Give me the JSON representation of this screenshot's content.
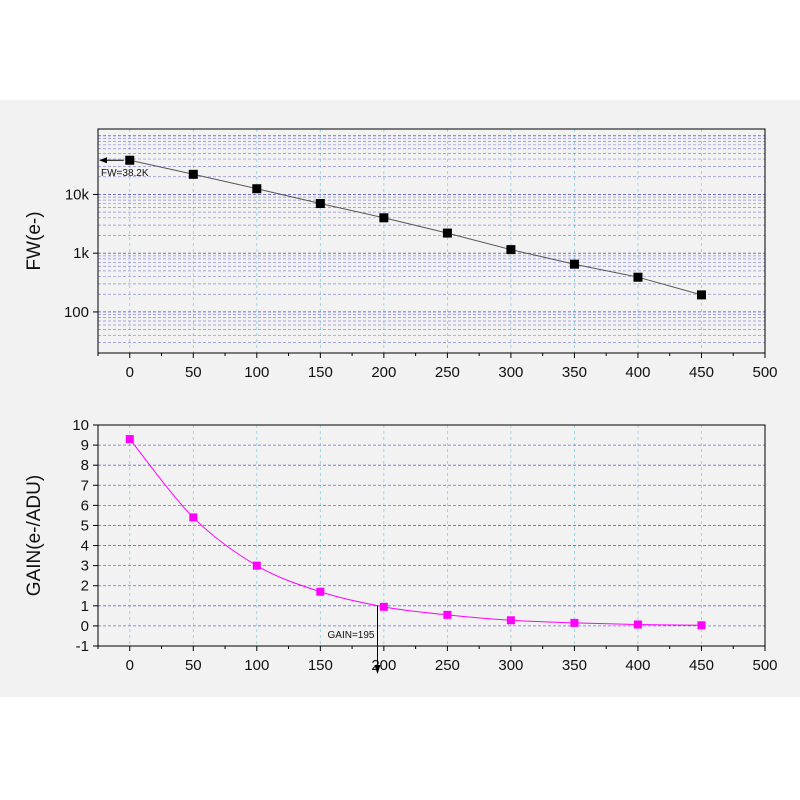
{
  "chart_data": [
    {
      "id": "fw",
      "type": "line",
      "ylabel": "FW(e-)",
      "xlabel": "",
      "title": "",
      "yscale": "log",
      "xlim": [
        -25,
        500
      ],
      "ylim": [
        20,
        130000
      ],
      "xticks": [
        0,
        50,
        100,
        150,
        200,
        250,
        300,
        350,
        400,
        450,
        500
      ],
      "yticks": [
        {
          "value": 100,
          "label": "100"
        },
        {
          "value": 1000,
          "label": "1k"
        },
        {
          "value": 10000,
          "label": "10k"
        }
      ],
      "grid": true,
      "series": [
        {
          "color": "#000000",
          "marker": "square",
          "x": [
            0,
            50,
            100,
            150,
            200,
            250,
            300,
            350,
            400,
            450
          ],
          "y": [
            38200,
            22000,
            12500,
            7000,
            4000,
            2200,
            1150,
            650,
            390,
            195
          ]
        }
      ],
      "annotations": [
        {
          "text": "FW=38.2K",
          "x": 0,
          "y": 38200,
          "arrow": "left"
        }
      ]
    },
    {
      "id": "gain",
      "type": "line",
      "ylabel": "GAIN(e-/ADU)",
      "xlabel": "",
      "title": "",
      "yscale": "linear",
      "xlim": [
        -25,
        500
      ],
      "ylim": [
        -1,
        10
      ],
      "xticks": [
        0,
        50,
        100,
        150,
        200,
        250,
        300,
        350,
        400,
        450,
        500
      ],
      "yticks": [
        {
          "value": -1,
          "label": "-1"
        },
        {
          "value": 0,
          "label": "0"
        },
        {
          "value": 1,
          "label": "1"
        },
        {
          "value": 2,
          "label": "2"
        },
        {
          "value": 3,
          "label": "3"
        },
        {
          "value": 4,
          "label": "4"
        },
        {
          "value": 5,
          "label": "5"
        },
        {
          "value": 6,
          "label": "6"
        },
        {
          "value": 7,
          "label": "7"
        },
        {
          "value": 8,
          "label": "8"
        },
        {
          "value": 9,
          "label": "9"
        },
        {
          "value": 10,
          "label": "10"
        }
      ],
      "grid": true,
      "series": [
        {
          "color": "#ff00ff",
          "marker": "square",
          "x": [
            0,
            50,
            100,
            150,
            200,
            250,
            300,
            350,
            400,
            450
          ],
          "y": [
            9.3,
            5.4,
            3.0,
            1.7,
            0.95,
            0.55,
            0.28,
            0.15,
            0.07,
            0.03
          ]
        }
      ],
      "annotations": [
        {
          "text": "GAIN=195",
          "x": 195,
          "y": 1,
          "arrow": "down"
        }
      ]
    }
  ]
}
